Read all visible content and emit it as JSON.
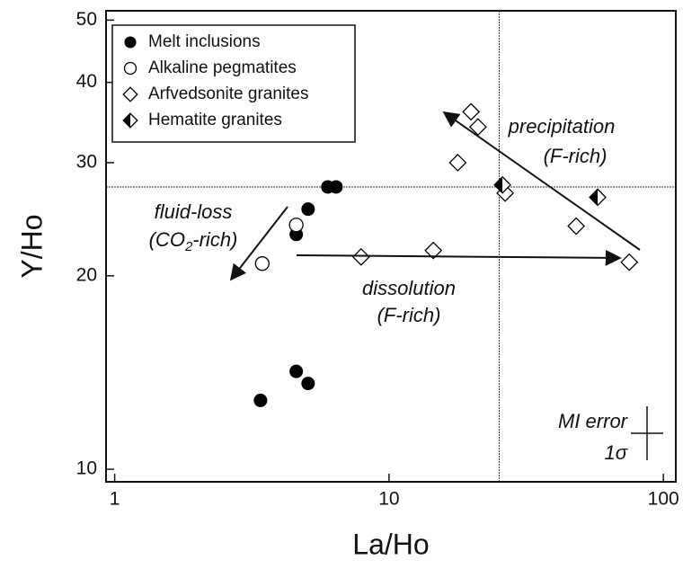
{
  "chart_data": {
    "type": "scatter",
    "xlabel": "La/Ho",
    "ylabel": "Y/Ho",
    "xscale": "log",
    "yscale": "log",
    "xlim": [
      0.93,
      111
    ],
    "ylim": [
      9.56,
      51.7
    ],
    "xticks": [
      1,
      10,
      100
    ],
    "yticks": [
      10,
      20,
      30,
      40,
      50
    ],
    "legend": "upper left",
    "series": [
      {
        "name": "Melt inclusions",
        "color": "#000000",
        "marker": "filled-circle",
        "x": [
          3.4,
          4.59,
          5.07,
          4.59,
          5.07,
          5.98,
          6.41
        ],
        "values": [
          12.8,
          14.2,
          13.6,
          23.2,
          25.4,
          27.5,
          27.5
        ]
      },
      {
        "name": "Alkaline pegmatites",
        "color": "#000000",
        "marker": "open-circle",
        "x": [
          3.45,
          4.59
        ],
        "values": [
          20.9,
          24.0
        ]
      },
      {
        "name": "Arfvedsonite granites",
        "color": "#000000",
        "marker": "open-diamond",
        "x": [
          7.91,
          14.5,
          17.8,
          19.9,
          21.1,
          26.5,
          48.1,
          75.1
        ],
        "values": [
          21.4,
          21.9,
          30.0,
          36.0,
          34.1,
          26.9,
          23.9,
          21.0
        ]
      },
      {
        "name": "Hematite granites",
        "color": "#000000",
        "marker": "half-diamond",
        "x": [
          25.9,
          57.6
        ],
        "values": [
          27.7,
          26.5
        ]
      }
    ],
    "reference_lines": {
      "x": 25.2,
      "y": 27.5
    },
    "annotations": {
      "precipitation": [
        "precipitation",
        "(F-rich)"
      ],
      "fluid_loss": [
        "fluid-loss",
        "(CO",
        "2",
        "-rich)"
      ],
      "dissolution": [
        "dissolution",
        "(F-rich)"
      ],
      "error": [
        "MI error",
        "1σ"
      ]
    }
  }
}
